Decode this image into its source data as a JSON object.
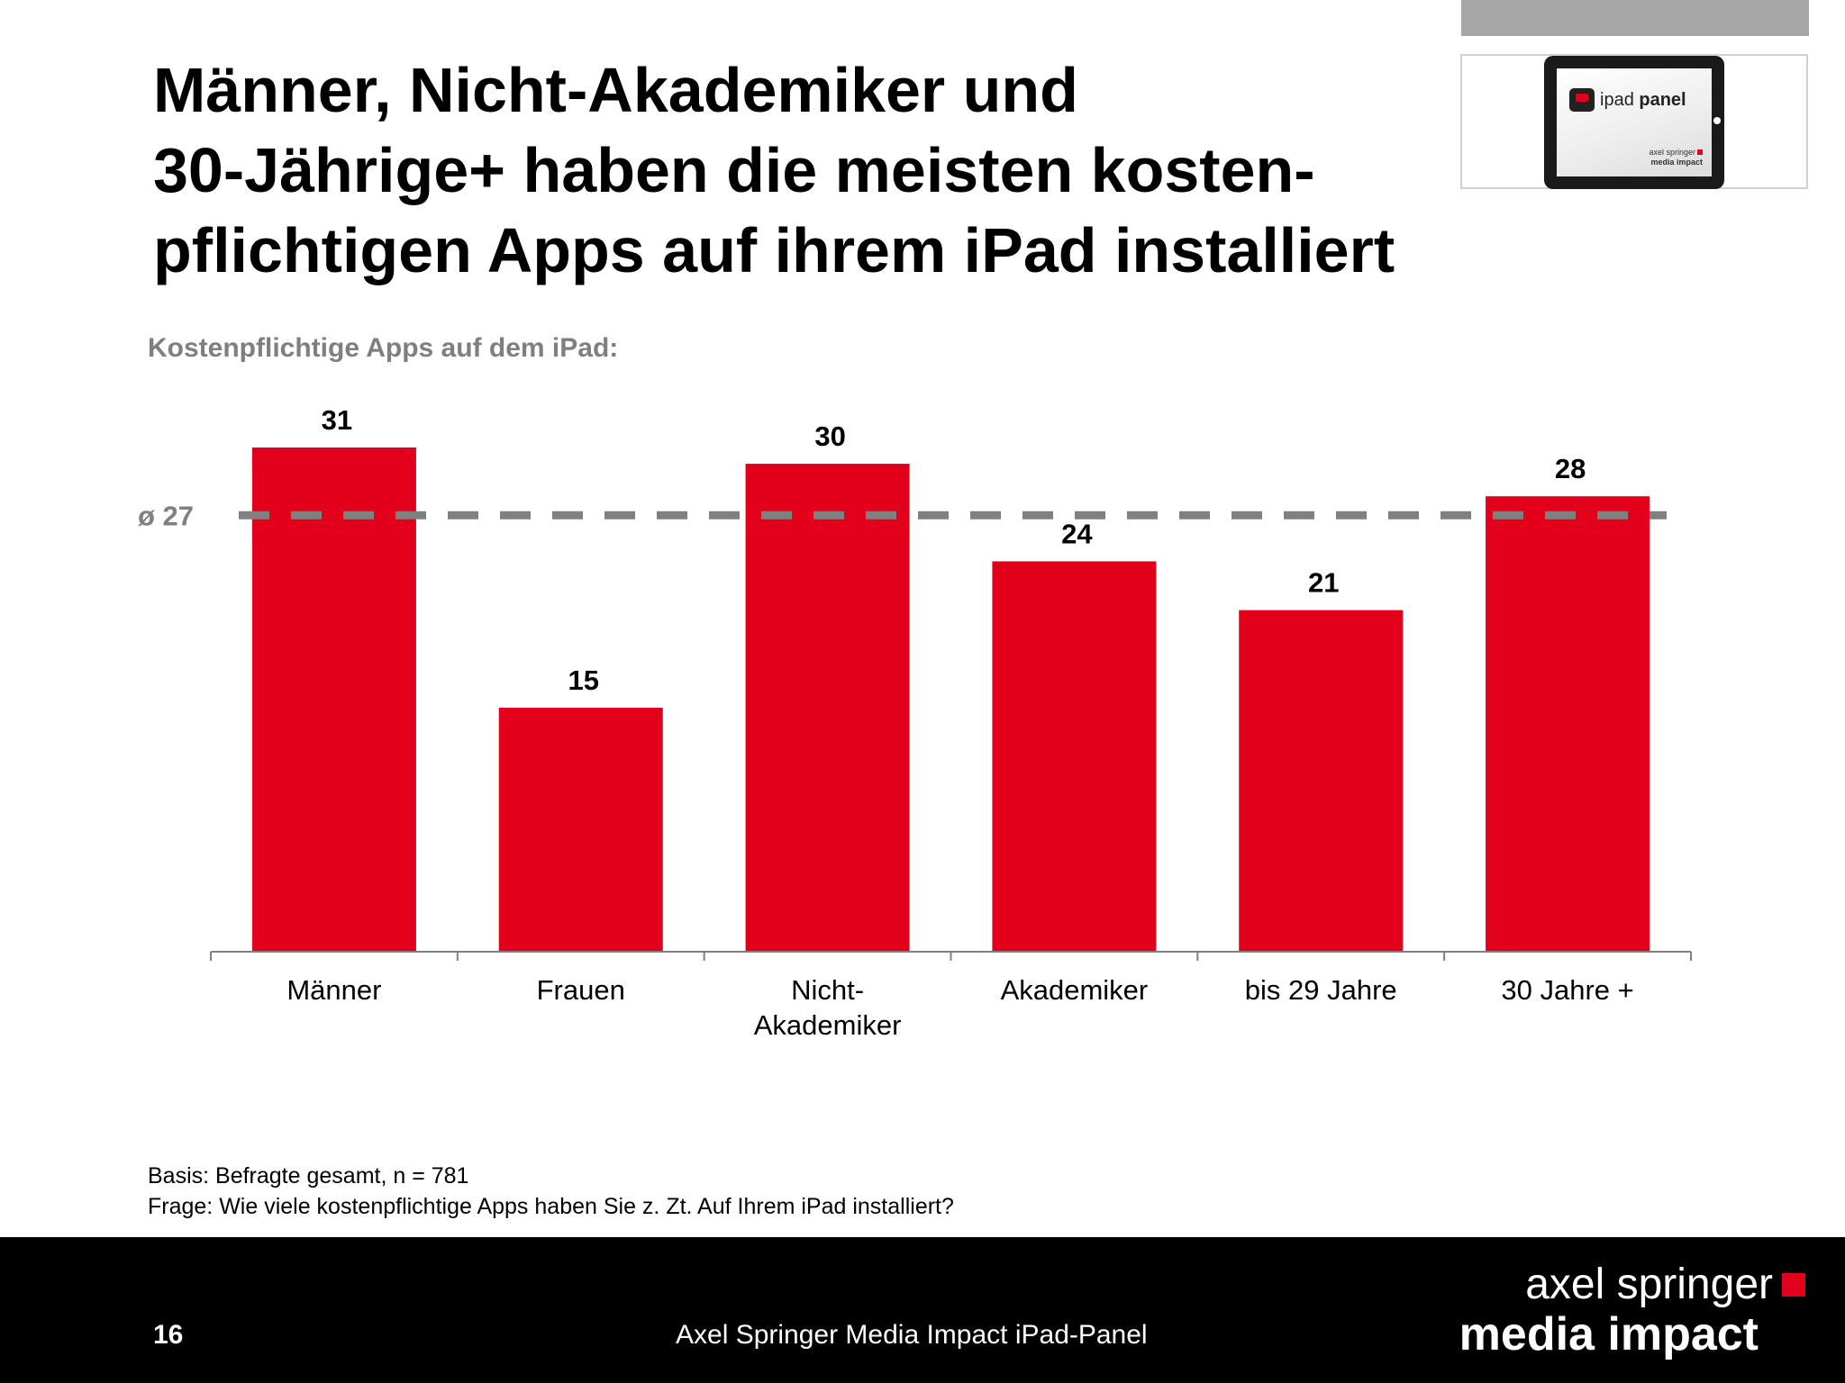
{
  "title": {
    "line1": "Männer, Nicht-Akademiker und",
    "line2": "30-Jährige+ haben die meisten kosten-",
    "line3": "pflichtigen Apps auf ihrem iPad installiert"
  },
  "subtitle": "Kostenpflichtige Apps auf dem iPad:",
  "logo": {
    "panel_prefix": "ipad ",
    "panel_bold": "panel",
    "brand_line1": "axel springer",
    "brand_line2": "media impact"
  },
  "chart_data": {
    "type": "bar",
    "categories": [
      [
        "Männer"
      ],
      [
        "Frauen"
      ],
      [
        "Nicht-",
        "Akademiker"
      ],
      [
        "Akademiker"
      ],
      [
        "bis 29 Jahre"
      ],
      [
        "30 Jahre +"
      ]
    ],
    "values": [
      31,
      15,
      30,
      24,
      21,
      28
    ],
    "data_labels": [
      "31",
      "15",
      "30",
      "24",
      "21",
      "28"
    ],
    "average": {
      "value": 27,
      "label": "ø 27"
    },
    "ylim": [
      0,
      31
    ],
    "bar_color": "#e2001a",
    "average_line_color": "#808080",
    "grid": false
  },
  "notes": {
    "basis": "Basis: Befragte gesamt, n = 781",
    "question": "Frage: Wie viele kostenpflichtige Apps haben Sie z. Zt. Auf Ihrem iPad installiert?"
  },
  "footer": {
    "page_number": "16",
    "text": "Axel Springer Media Impact iPad-Panel",
    "brand_line1": "axel springer",
    "brand_line2": "media impact",
    "brand_accent_color": "#e2001a"
  }
}
